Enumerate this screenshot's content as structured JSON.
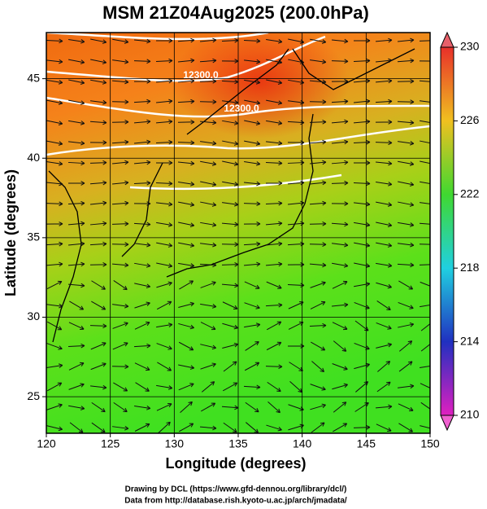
{
  "map": {
    "title": "MSM 21Z04Aug2025 (200.0hPa)",
    "xlabel": "Longitude (degrees)",
    "ylabel": "Latitude  (degrees)",
    "xlim": [
      120,
      150
    ],
    "xticks": [
      120,
      125,
      130,
      135,
      140,
      145,
      150
    ],
    "ylim": [
      22.7,
      47.9
    ],
    "yticks": [
      25,
      30,
      35,
      40,
      45
    ],
    "grid": true,
    "colorbar": {
      "lim": [
        210,
        230
      ],
      "ticks": [
        210,
        214,
        218,
        222,
        226,
        230
      ]
    },
    "contour_labels": [
      "12300.0",
      "12300.0"
    ],
    "credits": [
      "Drawing by DCL (https://www.gfd-dennou.org/library/dcl/)",
      "Data from http://database.rish.kyoto-u.ac.jp/arch/jmadata/"
    ]
  }
}
